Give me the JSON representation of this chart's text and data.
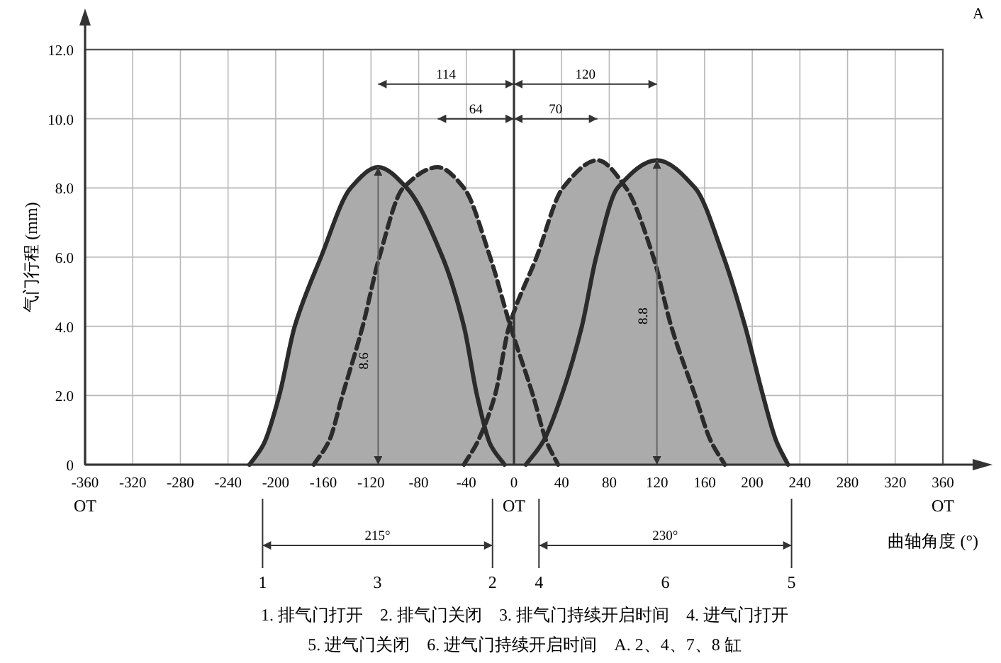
{
  "chart_data": {
    "type": "area",
    "xlabel": "曲轴角度 (°)",
    "ylabel": "气门行程 (mm)",
    "xlim": [
      -360,
      360
    ],
    "xticks": [
      {
        "value": -360,
        "label": "-360\nOT"
      },
      -320,
      -280,
      -240,
      -200,
      -160,
      -120,
      -80,
      -40,
      {
        "value": 0,
        "label": "0\nOT"
      },
      40,
      80,
      120,
      160,
      200,
      240,
      280,
      320,
      {
        "value": 360,
        "label": "360\nOT"
      }
    ],
    "ylim": [
      0,
      12
    ],
    "yticks": [
      0,
      {
        "value": 2,
        "label": "2.0"
      },
      {
        "value": 4,
        "label": "4.0"
      },
      {
        "value": 6,
        "label": "6.0"
      },
      {
        "value": 8,
        "label": "8.0"
      },
      {
        "value": 10,
        "label": "10.0"
      },
      {
        "value": 12,
        "label": "12.0"
      }
    ],
    "grid": true,
    "ref_lines": [
      {
        "axis": "x",
        "value": 0,
        "color": "#333333"
      }
    ],
    "series": [
      {
        "color": "#2b2b2b",
        "line_style": "solid",
        "x": [
          -222,
          -210,
          -197,
          -184,
          -162,
          -137,
          -114,
          -90,
          -60,
          -42,
          -31,
          -20,
          -8
        ],
        "values": [
          0,
          0.6,
          2,
          4,
          6,
          8,
          8.6,
          8,
          6,
          4,
          2,
          0.6,
          0
        ]
      },
      {
        "color": "#2b2b2b",
        "line_style": "dashed",
        "x": [
          -168,
          -155,
          -144,
          -127,
          -113,
          -93,
          -64,
          -42,
          -20,
          -3,
          16,
          27,
          37
        ],
        "values": [
          0,
          0.7,
          2,
          4,
          6,
          8,
          8.6,
          8,
          6,
          4,
          2,
          0.7,
          0
        ]
      },
      {
        "color": "#2b2b2b",
        "line_style": "dashed",
        "x": [
          -42,
          -30,
          -16,
          -4,
          19,
          41,
          70,
          94,
          117,
          132,
          152,
          165,
          177
        ],
        "values": [
          0,
          0.7,
          2,
          4,
          6,
          8,
          8.8,
          8,
          6,
          4,
          2,
          0.7,
          0
        ]
      },
      {
        "color": "#2b2b2b",
        "line_style": "solid",
        "x": [
          10,
          25,
          40,
          57,
          69,
          87,
          120,
          152,
          176,
          194,
          209,
          220,
          230
        ],
        "values": [
          0,
          0.7,
          2,
          4,
          6,
          8,
          8.8,
          8,
          6,
          4,
          2,
          0.7,
          0
        ]
      },
      {
        "type": "line",
        "color": "#333333",
        "x": [
          -114,
          0
        ],
        "values": [
          11,
          11
        ]
      },
      {
        "type": "line",
        "color": "#333333",
        "x": [
          -64,
          0
        ],
        "values": [
          10,
          10
        ]
      },
      {
        "type": "line",
        "color": "#333333",
        "x": [
          0,
          120
        ],
        "values": [
          11,
          11
        ]
      },
      {
        "type": "line",
        "color": "#333333",
        "x": [
          0,
          70
        ],
        "values": [
          10,
          10
        ]
      },
      {
        "type": "line",
        "color": "#666666",
        "x": [
          -114,
          -114
        ],
        "values": [
          0,
          8.6
        ]
      },
      {
        "type": "line",
        "color": "#666666",
        "x": [
          120,
          120
        ],
        "values": [
          0,
          8.8
        ]
      }
    ],
    "annotations": [
      "A",
      {
        "text": "114",
        "x": -57,
        "y": 11
      },
      {
        "text": "64",
        "x": -32,
        "y": 10
      },
      {
        "text": "120",
        "x": 60,
        "y": 11
      },
      {
        "text": "70",
        "x": 35,
        "y": 10
      },
      {
        "text": "8.6",
        "x": -114,
        "y": 3
      },
      {
        "text": "8.8",
        "x": 120,
        "y": 4.3
      },
      "215°",
      "3",
      "230°",
      "6",
      {
        "text": "1",
        "x": -211
      },
      {
        "text": "2",
        "x": -18
      },
      {
        "text": "4",
        "x": 21
      },
      {
        "text": "5",
        "x": 233
      },
      "1. 排气门打开　2. 排气门关闭　3. 排气门持续开启时间　4. 进气门打开",
      "5. 进气门关闭　6. 进气门持续开启时间　A. 2、4、7、8 缸"
    ]
  }
}
